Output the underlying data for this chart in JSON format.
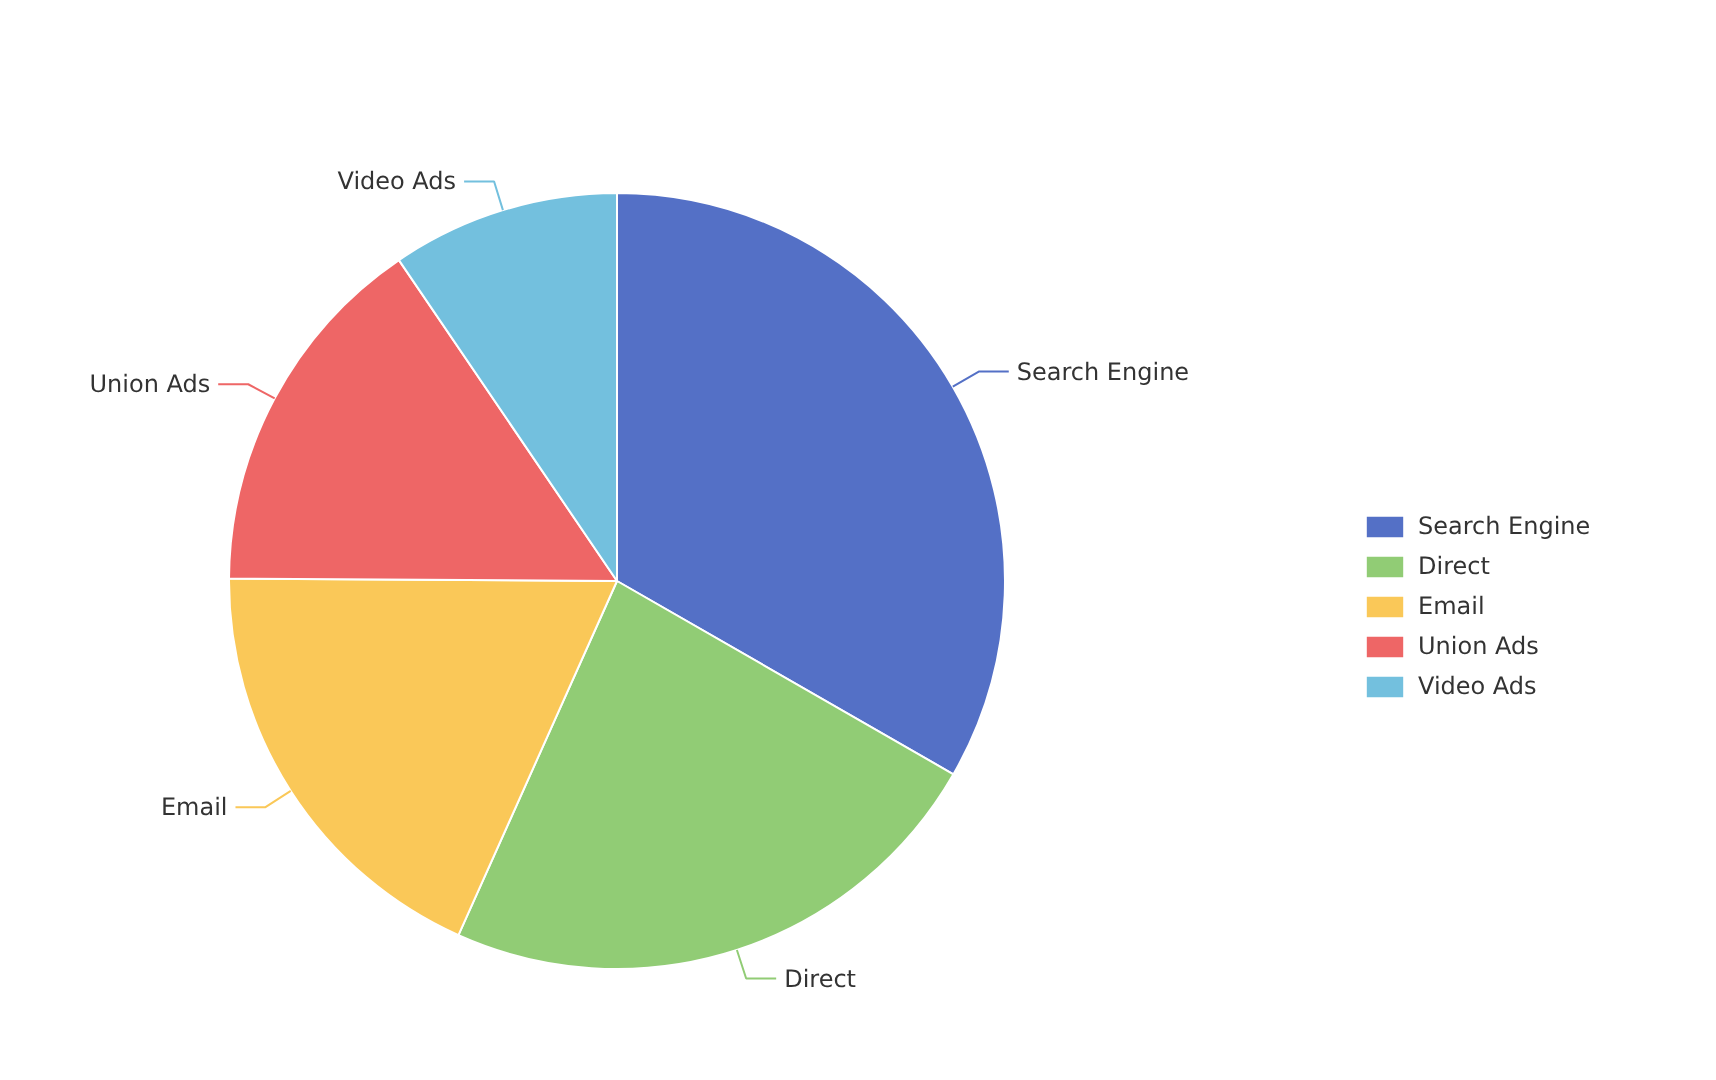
{
  "chart_data": {
    "type": "pie",
    "categories": [
      "Search Engine",
      "Direct",
      "Email",
      "Union Ads",
      "Video Ads"
    ],
    "values": [
      33.3,
      23.4,
      18.4,
      15.4,
      9.5
    ],
    "colors": [
      "#5470c6",
      "#91cc75",
      "#fac858",
      "#ee6666",
      "#73c0de"
    ],
    "legend": "right"
  }
}
